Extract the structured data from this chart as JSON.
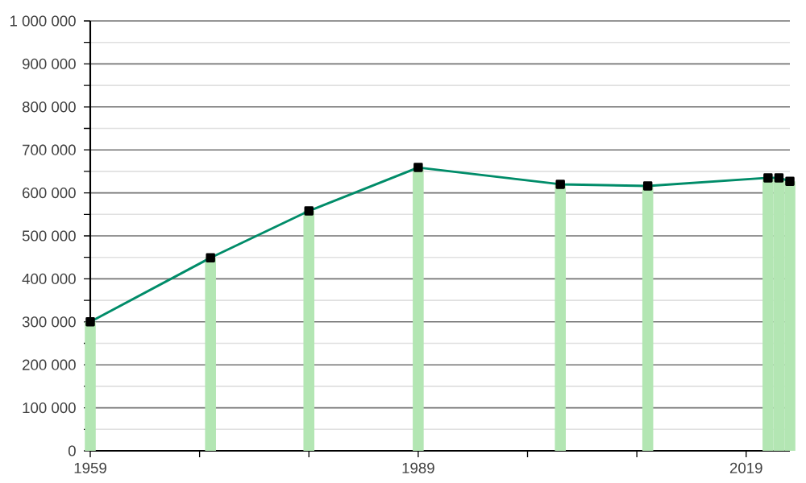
{
  "chart_data": {
    "type": "line",
    "x": [
      1959,
      1970,
      1979,
      1989,
      2002,
      2010,
      2021,
      2022,
      2023
    ],
    "series": [
      {
        "type": "bar",
        "color": "#b3e6b3",
        "values": [
          300000,
          449000,
          558000,
          659000,
          620000,
          616000,
          635000,
          635000,
          627000
        ]
      },
      {
        "color": "#008c69",
        "marker": "square",
        "values": [
          300000,
          449000,
          558000,
          659000,
          620000,
          616000,
          635000,
          635000,
          627000
        ]
      }
    ],
    "xlim": [
      1959,
      2023
    ],
    "xticks": [
      1959,
      {
        "value": 1969,
        "label": null
      },
      {
        "value": 1979,
        "label": null
      },
      1989,
      {
        "value": 1999,
        "label": null
      },
      {
        "value": 2009,
        "label": null
      },
      2019
    ],
    "ylim": [
      0,
      1000000
    ],
    "yticks": [
      0,
      {
        "value": 50000,
        "label": null
      },
      {
        "value": 100000,
        "label": "100 000"
      },
      {
        "value": 150000,
        "label": null
      },
      {
        "value": 200000,
        "label": "200 000"
      },
      {
        "value": 250000,
        "label": null
      },
      {
        "value": 300000,
        "label": "300 000"
      },
      {
        "value": 350000,
        "label": null
      },
      {
        "value": 400000,
        "label": "400 000"
      },
      {
        "value": 450000,
        "label": null
      },
      {
        "value": 500000,
        "label": "500 000"
      },
      {
        "value": 550000,
        "label": null
      },
      {
        "value": 600000,
        "label": "600 000"
      },
      {
        "value": 650000,
        "label": null
      },
      {
        "value": 700000,
        "label": "700 000"
      },
      {
        "value": 750000,
        "label": null
      },
      {
        "value": 800000,
        "label": "800 000"
      },
      {
        "value": 850000,
        "label": null
      },
      {
        "value": 900000,
        "label": "900 000"
      },
      {
        "value": 950000,
        "label": null
      },
      {
        "value": 1000000,
        "label": "1 000 000"
      }
    ],
    "grid": "y"
  }
}
